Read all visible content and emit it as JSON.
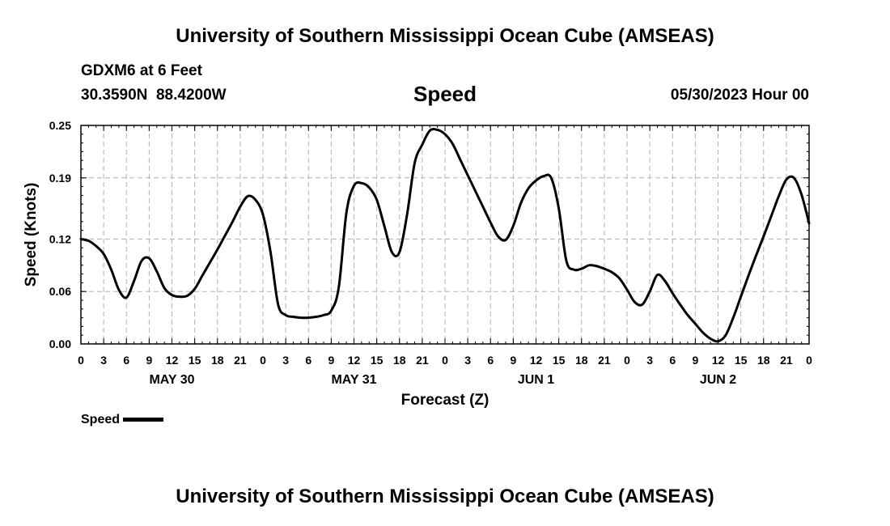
{
  "header": {
    "title": "University of Southern Mississippi Ocean Cube (AMSEAS)",
    "station": "GDXM6 at 6 Feet",
    "coords": "30.3590N  88.4200W",
    "panel_title": "Speed",
    "run_time": "05/30/2023 Hour 00"
  },
  "footer": {
    "title": "University of Southern Mississippi Ocean Cube (AMSEAS)"
  },
  "legend": {
    "label": "Speed"
  },
  "colors": {
    "line": "#000000",
    "grid": "#b0b0b0",
    "background": "#ffffff"
  },
  "chart_data": {
    "type": "line",
    "title": "Speed",
    "xlabel": "Forecast (Z)",
    "ylabel": "Speed (Knots)",
    "xlim": [
      0,
      96
    ],
    "ylim": [
      0,
      0.25
    ],
    "yticks": [
      0.0,
      0.06,
      0.12,
      0.19,
      0.25
    ],
    "ytick_labels": [
      "0.00",
      "0.06",
      "0.12",
      "0.19",
      "0.25"
    ],
    "xticks": [
      0,
      3,
      6,
      9,
      12,
      15,
      18,
      21,
      24,
      27,
      30,
      33,
      36,
      39,
      42,
      45,
      48,
      51,
      54,
      57,
      60,
      63,
      66,
      69,
      72,
      75,
      78,
      81,
      84,
      87,
      90,
      93,
      96
    ],
    "xtick_labels": [
      "0",
      "3",
      "6",
      "9",
      "12",
      "15",
      "18",
      "21",
      "0",
      "3",
      "6",
      "9",
      "12",
      "15",
      "18",
      "21",
      "0",
      "3",
      "6",
      "9",
      "12",
      "15",
      "18",
      "21",
      "0",
      "3",
      "6",
      "9",
      "12",
      "15",
      "18",
      "21",
      "0"
    ],
    "day_labels": [
      {
        "hour": 12,
        "label": "MAY 30"
      },
      {
        "hour": 36,
        "label": "MAY 31"
      },
      {
        "hour": 60,
        "label": "JUN 1"
      },
      {
        "hour": 84,
        "label": "JUN 2"
      }
    ],
    "grid": true,
    "legend_position": "bottom-left",
    "series": [
      {
        "name": "Speed",
        "x": [
          0,
          1,
          2,
          3,
          4,
          5,
          6,
          7,
          8,
          9,
          10,
          11,
          12,
          13,
          14,
          15,
          16,
          17,
          18,
          19,
          20,
          21,
          22,
          23,
          24,
          25,
          26,
          27,
          28,
          29,
          30,
          31,
          32,
          33,
          34,
          35,
          36,
          37,
          38,
          39,
          40,
          41,
          42,
          43,
          44,
          45,
          46,
          47,
          48,
          49,
          50,
          51,
          52,
          53,
          54,
          55,
          56,
          57,
          58,
          59,
          60,
          61,
          62,
          63,
          64,
          65,
          66,
          67,
          68,
          69,
          70,
          71,
          72,
          73,
          74,
          75,
          76,
          77,
          78,
          79,
          80,
          81,
          82,
          83,
          84,
          85,
          86,
          87,
          88,
          89,
          90,
          91,
          92,
          93,
          94,
          95,
          96
        ],
        "values": [
          0.12,
          0.118,
          0.112,
          0.103,
          0.085,
          0.062,
          0.053,
          0.072,
          0.095,
          0.098,
          0.083,
          0.064,
          0.056,
          0.054,
          0.055,
          0.063,
          0.078,
          0.093,
          0.108,
          0.124,
          0.14,
          0.157,
          0.169,
          0.165,
          0.148,
          0.105,
          0.045,
          0.033,
          0.031,
          0.03,
          0.03,
          0.031,
          0.033,
          0.038,
          0.065,
          0.15,
          0.181,
          0.184,
          0.179,
          0.165,
          0.135,
          0.105,
          0.105,
          0.148,
          0.207,
          0.228,
          0.244,
          0.245,
          0.24,
          0.229,
          0.211,
          0.193,
          0.175,
          0.157,
          0.139,
          0.123,
          0.119,
          0.135,
          0.161,
          0.178,
          0.187,
          0.192,
          0.19,
          0.155,
          0.095,
          0.085,
          0.086,
          0.09,
          0.089,
          0.086,
          0.082,
          0.075,
          0.062,
          0.048,
          0.045,
          0.06,
          0.079,
          0.072,
          0.058,
          0.045,
          0.033,
          0.023,
          0.013,
          0.006,
          0.003,
          0.01,
          0.03,
          0.054,
          0.078,
          0.101,
          0.123,
          0.146,
          0.169,
          0.188,
          0.19,
          0.171,
          0.138
        ]
      }
    ]
  }
}
